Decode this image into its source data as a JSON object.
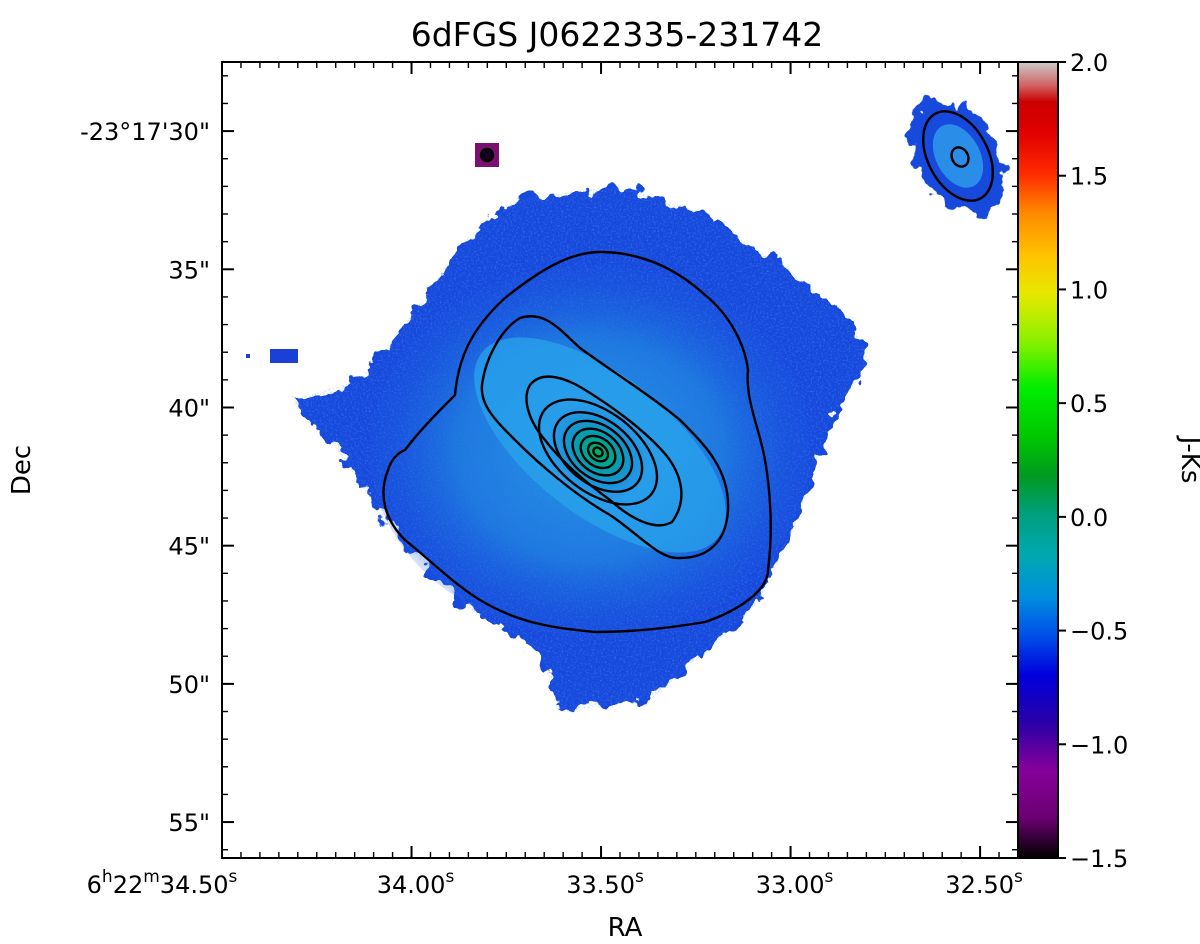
{
  "chart_data": {
    "type": "heatmap",
    "title": "6dFGS J0622335-231742",
    "xlabel": "RA",
    "ylabel": "Dec",
    "colorbar_label": "J-Ks",
    "x_ticks": [
      {
        "h": "6",
        "m": "22",
        "s": "34.50",
        "value_s": 34.5
      },
      {
        "s": "34.00",
        "value_s": 34.0
      },
      {
        "s": "33.50",
        "value_s": 33.5
      },
      {
        "s": "33.00",
        "value_s": 33.0
      },
      {
        "s": "32.50",
        "value_s": 32.5
      }
    ],
    "y_ticks": [
      {
        "label": "-23°17'30\"",
        "arcsec": 30
      },
      {
        "label": "35\"",
        "arcsec": 35
      },
      {
        "label": "40\"",
        "arcsec": 40
      },
      {
        "label": "45\"",
        "arcsec": 45
      },
      {
        "label": "50\"",
        "arcsec": 50
      },
      {
        "label": "55\"",
        "arcsec": 55
      }
    ],
    "xlim_s": [
      34.5,
      32.4
    ],
    "ylim_arcsec": [
      56.3,
      27.5
    ],
    "colorbar": {
      "min": -1.5,
      "max": 2.0,
      "ticks": [
        "2.0",
        "1.5",
        "1.0",
        "0.5",
        "0.0",
        "−0.5",
        "−1.0",
        "−1.5"
      ],
      "tick_values": [
        2.0,
        1.5,
        1.0,
        0.5,
        0.0,
        -0.5,
        -1.0,
        -1.5
      ],
      "colormap": "nipy_spectral"
    },
    "sources": [
      {
        "name": "main-galaxy",
        "ra_s": 33.51,
        "dec_arcsec": 41.6,
        "typical_j_ks": -0.75,
        "core_j_ks": 0.05
      },
      {
        "name": "companion-ne",
        "ra_s": 32.55,
        "dec_arcsec": 30.8,
        "typical_j_ks": -0.8
      },
      {
        "name": "compact-source",
        "ra_s": 33.81,
        "dec_arcsec": 30.8,
        "typical_j_ks": -1.2
      }
    ]
  }
}
